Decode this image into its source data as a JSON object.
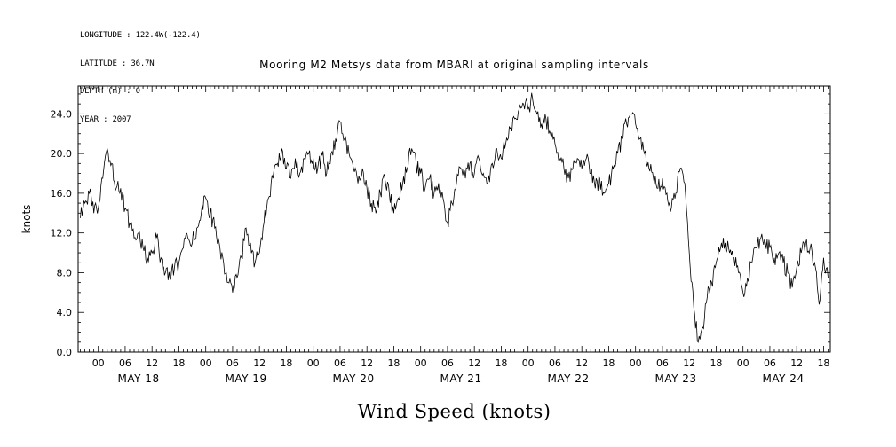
{
  "meta": {
    "longitude": "LONGITUDE : 122.4W(-122.4)",
    "latitude": "LATITUDE : 36.7N",
    "depth": "DEPTH (m) : 0",
    "year": "YEAR : 2007"
  },
  "title": "Mooring M2 Metsys data from MBARI at original sampling intervals",
  "x_axis_title": "Wind Speed (knots)",
  "chart_data": {
    "type": "line",
    "title": "Mooring M2 Metsys data from MBARI at original sampling intervals",
    "ylabel": "knots",
    "ylim": [
      0,
      26.8
    ],
    "yticks": [
      0,
      4,
      8,
      12,
      16,
      20,
      24
    ],
    "ytick_labels": [
      "0.0",
      "4.0",
      "8.0",
      "12.0",
      "16.0",
      "20.0",
      "24.0"
    ],
    "xlim_hours": [
      -4.5,
      163.5
    ],
    "hour_tick_labels": [
      "00",
      "06",
      "12",
      "18"
    ],
    "day_labels": [
      "MAY 18",
      "MAY 19",
      "MAY 20",
      "MAY 21",
      "MAY 22",
      "MAY 23",
      "MAY 24"
    ],
    "x_start": -4,
    "x_step_hours": 1,
    "grid": false,
    "line_color": "#000000",
    "noise": {
      "amplitude": 0.85,
      "substeps": 5,
      "seed": 12345
    },
    "series": [
      {
        "name": "wind_speed_knots",
        "values": [
          13.5,
          15.0,
          16.0,
          14.0,
          14.5,
          17.5,
          20.5,
          19.0,
          16.5,
          16.5,
          14.5,
          13.0,
          11.5,
          12.0,
          10.5,
          9.5,
          10.0,
          11.5,
          9.5,
          8.0,
          7.5,
          8.5,
          9.0,
          10.5,
          11.5,
          11.0,
          12.5,
          14.0,
          15.5,
          14.0,
          12.5,
          11.0,
          9.0,
          7.0,
          6.0,
          7.5,
          9.5,
          12.5,
          11.0,
          9.0,
          10.0,
          13.0,
          15.5,
          17.5,
          19.0,
          20.5,
          18.5,
          17.5,
          19.5,
          18.0,
          19.5,
          20.0,
          19.5,
          18.5,
          19.8,
          18.0,
          20.0,
          21.5,
          23.2,
          21.5,
          20.0,
          18.5,
          17.0,
          18.5,
          16.5,
          15.0,
          14.0,
          16.0,
          17.5,
          16.0,
          14.0,
          15.5,
          17.0,
          18.5,
          20.5,
          19.0,
          18.0,
          16.5,
          17.5,
          16.0,
          17.0,
          15.5,
          13.0,
          15.0,
          17.0,
          18.5,
          17.5,
          19.0,
          18.0,
          19.5,
          18.0,
          17.0,
          19.0,
          20.5,
          19.5,
          21.0,
          22.5,
          23.5,
          24.5,
          25.0,
          24.5,
          25.5,
          24.0,
          23.0,
          23.5,
          22.0,
          21.0,
          19.5,
          18.5,
          17.5,
          18.5,
          19.5,
          18.5,
          19.5,
          18.0,
          16.5,
          17.5,
          16.0,
          17.0,
          18.5,
          20.0,
          21.5,
          23.0,
          24.0,
          23.0,
          21.5,
          20.0,
          18.5,
          17.5,
          16.5,
          17.5,
          16.0,
          14.5,
          16.0,
          18.5,
          17.0,
          10.0,
          4.5,
          1.0,
          2.5,
          5.5,
          7.0,
          9.0,
          10.5,
          11.0,
          10.0,
          9.5,
          8.0,
          6.0,
          7.5,
          9.0,
          10.5,
          11.5,
          11.0,
          10.5,
          9.5,
          10.0,
          9.0,
          8.0,
          6.5,
          8.5,
          10.0,
          11.0,
          10.5,
          9.0,
          4.8,
          9.5,
          7.5
        ]
      }
    ]
  }
}
